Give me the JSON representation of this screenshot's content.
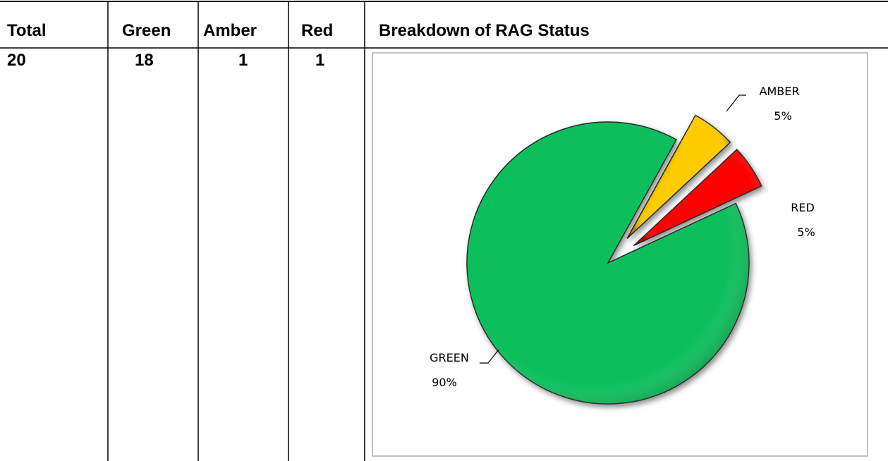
{
  "table": {
    "headers": [
      "Total",
      "Green",
      "Amber",
      "Red",
      "Breakdown of RAG Status"
    ],
    "rows": [
      [
        "20",
        "18",
        "1",
        "1"
      ]
    ]
  },
  "chart_data": {
    "type": "pie",
    "categories": [
      "GREEN",
      "AMBER",
      "RED"
    ],
    "values": [
      90,
      5,
      5
    ],
    "value_labels": [
      "90%",
      "5%",
      "5%"
    ],
    "colors": [
      "#0abf5b",
      "#ffcc00",
      "#ff0000"
    ]
  }
}
